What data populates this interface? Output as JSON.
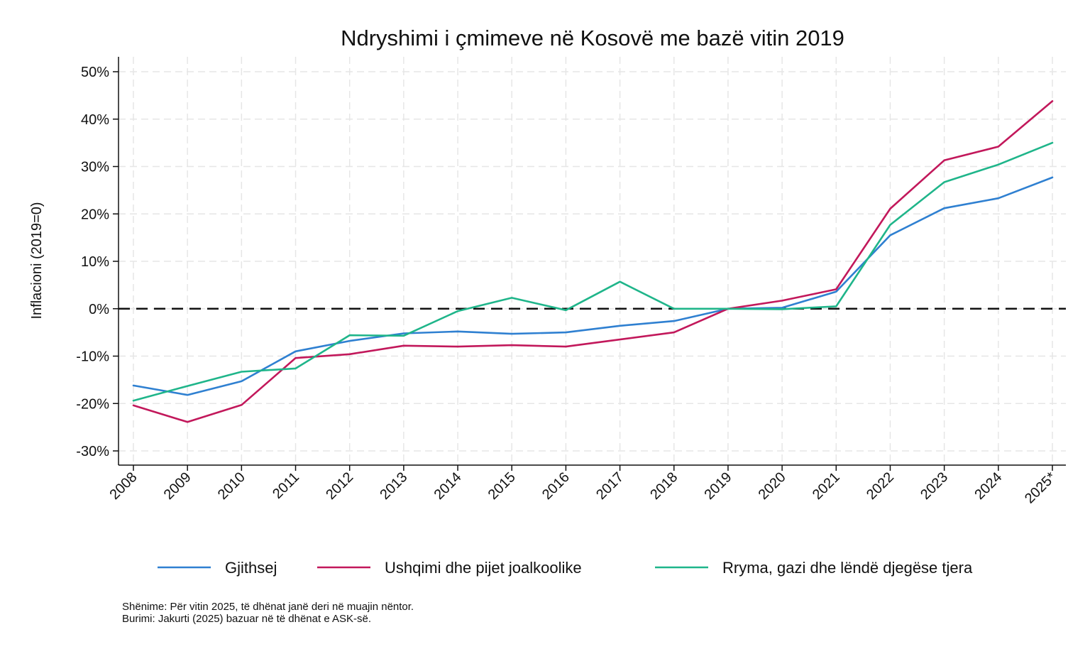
{
  "chart_data": {
    "type": "line",
    "title": "Ndryshimi i çmimeve në Kosovë me bazë vitin 2019",
    "ylabel": "Inflacioni (2019=0)",
    "xlabel": "",
    "categories": [
      "2008",
      "2009",
      "2010",
      "2011",
      "2012",
      "2013",
      "2014",
      "2015",
      "2016",
      "2017",
      "2018",
      "2019",
      "2020",
      "2021",
      "2022",
      "2023",
      "2024",
      "2025*"
    ],
    "y_ticks": [
      50,
      40,
      30,
      20,
      10,
      0,
      -10,
      -20,
      -30
    ],
    "y_tick_labels": [
      "50%",
      "40%",
      "30%",
      "20%",
      "10%",
      "0%",
      "-10%",
      "-20%",
      "-30%"
    ],
    "ylim": [
      -32,
      53
    ],
    "grid": true,
    "reference_line": {
      "y": 0,
      "style": "dashed"
    },
    "legend_position": "bottom",
    "series": [
      {
        "name": "Gjithsej",
        "color": "#2f80d1",
        "values": [
          -16.2,
          -18.2,
          -15.3,
          -9.0,
          -6.8,
          -5.2,
          -4.8,
          -5.3,
          -5.0,
          -3.6,
          -2.6,
          0.0,
          0.2,
          3.6,
          15.5,
          21.2,
          23.3,
          27.7
        ]
      },
      {
        "name": "Ushqimi dhe pijet joalkoolike",
        "color": "#c2185b",
        "values": [
          -20.4,
          -23.9,
          -20.3,
          -10.4,
          -9.6,
          -7.8,
          -8.0,
          -7.7,
          -8.0,
          -6.5,
          -5.0,
          0.0,
          1.7,
          4.1,
          21.1,
          31.3,
          34.2,
          43.8
        ]
      },
      {
        "name": "Rryma, gazi dhe lëndë djegëse tjera",
        "color": "#1fb58a",
        "values": [
          -19.4,
          -16.3,
          -13.3,
          -12.6,
          -5.6,
          -5.7,
          -0.5,
          2.3,
          -0.3,
          5.7,
          0.0,
          0.0,
          -0.1,
          0.5,
          17.7,
          26.7,
          30.4,
          35.0
        ]
      }
    ]
  },
  "notes": {
    "line1": "Shënime: Për vitin 2025, të dhënat janë deri në muajin nëntor.",
    "line2": "Burimi: Jakurti (2025) bazuar në të dhënat e ASK-së."
  }
}
